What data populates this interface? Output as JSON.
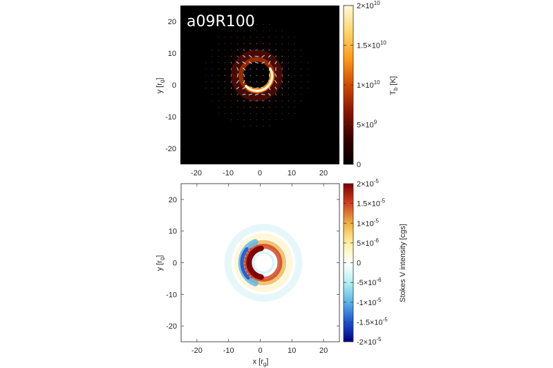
{
  "figure": {
    "model_label": "a09R100"
  },
  "chart_data": [
    {
      "type": "heatmap",
      "panel": "top",
      "title": "a09R100",
      "xlabel": "",
      "ylabel_main": "y [r",
      "ylabel_sub": "g",
      "ylabel_end": "]",
      "xlim": [
        -25,
        25
      ],
      "ylim": [
        -25,
        25
      ],
      "x_ticks": [
        -20,
        -10,
        0,
        10,
        20
      ],
      "y_ticks": [
        -20,
        -10,
        0,
        10,
        20
      ],
      "x_tick_labels": [
        "-20",
        "-10",
        "0",
        "10",
        "20"
      ],
      "y_tick_labels": [
        "-20",
        "-10",
        "0",
        "10",
        "20"
      ],
      "colorbar": {
        "label_main": "T",
        "label_sub": "b",
        "label_end": " [K]",
        "range": [
          0,
          20000000000.0
        ],
        "ticks": [
          0,
          5000000000.0,
          10000000000.0,
          15000000000.0,
          20000000000.0
        ],
        "tick_labels": [
          {
            "base": "0",
            "exp": ""
          },
          {
            "base": "5×10",
            "exp": "9"
          },
          {
            "base": "1×10",
            "exp": "10"
          },
          {
            "base": "1.5×10",
            "exp": "10"
          },
          {
            "base": "2×10",
            "exp": "10"
          }
        ],
        "colormap": [
          "#000000",
          "#3a0000",
          "#8a1500",
          "#d24a00",
          "#ff9a1a",
          "#ffd56a",
          "#fff9d8"
        ]
      },
      "features": {
        "ring_center": [
          -1,
          3
        ],
        "ring_radius": 5,
        "bright_crescent_side": "left",
        "polarization_ticks": true
      }
    },
    {
      "type": "heatmap",
      "panel": "bottom",
      "xlabel_main": "x [r",
      "xlabel_sub": "g",
      "xlabel_end": "]",
      "ylabel_main": "y [r",
      "ylabel_sub": "g",
      "ylabel_end": "]",
      "xlim": [
        -25,
        25
      ],
      "ylim": [
        -25,
        25
      ],
      "x_ticks": [
        -20,
        -10,
        0,
        10,
        20
      ],
      "y_ticks": [
        -20,
        -10,
        0,
        10,
        20
      ],
      "x_tick_labels": [
        "-20",
        "-10",
        "0",
        "10",
        "20"
      ],
      "y_tick_labels": [
        "-20",
        "-10",
        "0",
        "10",
        "20"
      ],
      "colorbar": {
        "label": "Stokes V intensity [cgs]",
        "range": [
          -2e-05,
          2e-05
        ],
        "ticks": [
          -2e-05,
          -1.5e-05,
          -1e-05,
          -5e-06,
          0,
          5e-06,
          1e-05,
          1.5e-05,
          2e-05
        ],
        "tick_labels": [
          {
            "base": "-2×10",
            "exp": "-5"
          },
          {
            "base": "-1.5×10",
            "exp": "-5"
          },
          {
            "base": "-1×10",
            "exp": "-5"
          },
          {
            "base": "-5×10",
            "exp": "-6"
          },
          {
            "base": "0",
            "exp": ""
          },
          {
            "base": "5×10",
            "exp": "-6"
          },
          {
            "base": "1×10",
            "exp": "-5"
          },
          {
            "base": "1.5×10",
            "exp": "-5"
          },
          {
            "base": "2×10",
            "exp": "-5"
          }
        ],
        "colormap": [
          "#000080",
          "#1e50d0",
          "#5ab4e8",
          "#b4f0f0",
          "#ffffff",
          "#fff0a0",
          "#f0b040",
          "#d04020",
          "#800000"
        ]
      },
      "features": {
        "ring_center": [
          1,
          0
        ],
        "ring_radius": 4,
        "positive_crescent_side": "left-inner",
        "negative_band_side": "left-outer"
      }
    }
  ]
}
